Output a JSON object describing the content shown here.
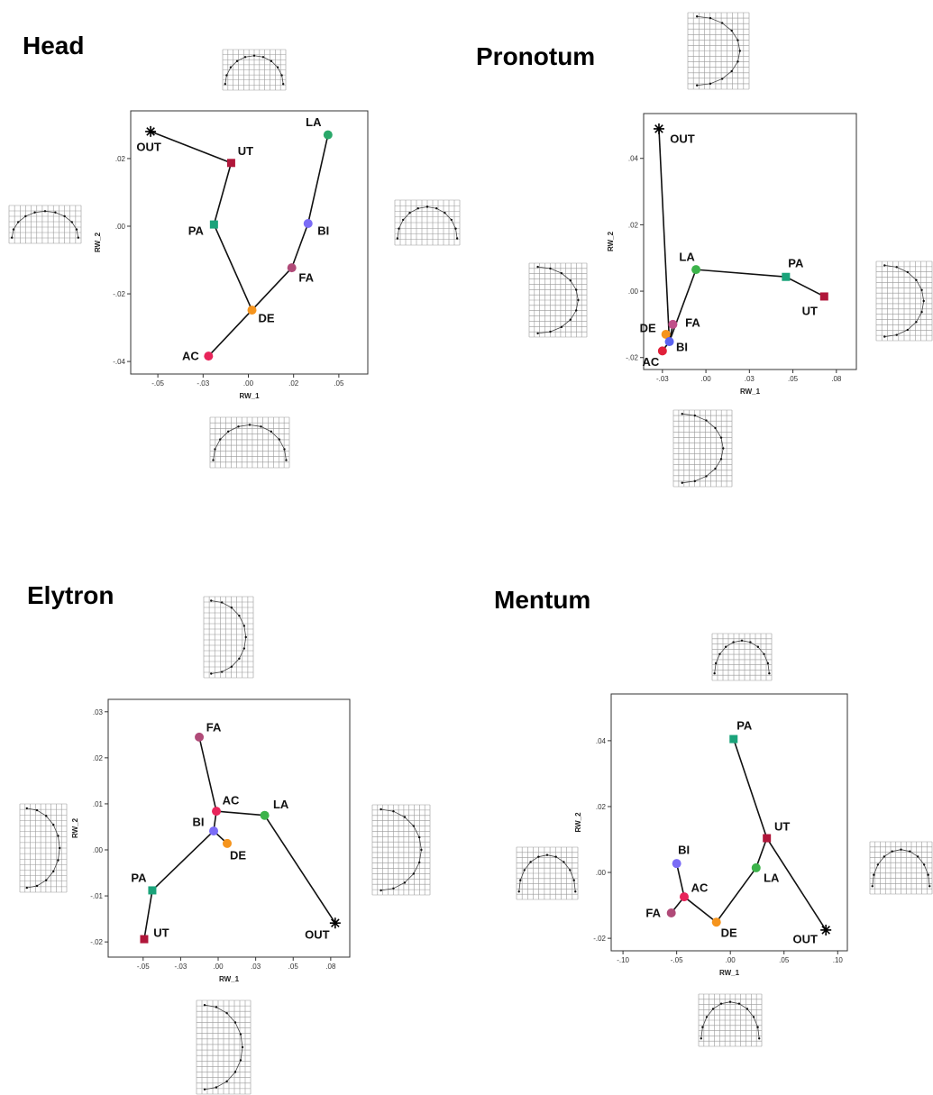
{
  "chart_data": [
    {
      "type": "scatter",
      "title": "Head",
      "xlabel": "RW_1",
      "ylabel": "RW_2",
      "xlim": [
        -0.065,
        0.066
      ],
      "ylim": [
        -0.0437,
        0.0341
      ],
      "xticks": [
        {
          "value": -0.05,
          "label": "-.05"
        },
        {
          "value": -0.025,
          "label": "-.03"
        },
        {
          "value": 0,
          "label": ".00"
        },
        {
          "value": 0.025,
          "label": ".02"
        },
        {
          "value": 0.05,
          "label": ".05"
        }
      ],
      "yticks": [
        {
          "value": 0.02,
          "label": ".02"
        },
        {
          "value": 0,
          "label": ".00"
        },
        {
          "value": -0.02,
          "label": "-.02"
        },
        {
          "value": -0.04,
          "label": "-.04"
        }
      ],
      "points": [
        {
          "label": "OUT",
          "x": -0.054,
          "y": 0.028,
          "color": "#000000",
          "marker": "star"
        },
        {
          "label": "UT",
          "x": -0.0095,
          "y": 0.0187,
          "color": "#b0163a",
          "marker": "square"
        },
        {
          "label": "PA",
          "x": -0.019,
          "y": 0.0005,
          "color": "#1aa37a",
          "marker": "square"
        },
        {
          "label": "LA",
          "x": 0.044,
          "y": 0.027,
          "color": "#2aa86a",
          "marker": "circle"
        },
        {
          "label": "BI",
          "x": 0.033,
          "y": 0.0008,
          "color": "#7b6cf6",
          "marker": "circle"
        },
        {
          "label": "FA",
          "x": 0.024,
          "y": -0.0123,
          "color": "#b04a78",
          "marker": "circle"
        },
        {
          "label": "DE",
          "x": 0.002,
          "y": -0.0248,
          "color": "#f5941d",
          "marker": "circle"
        },
        {
          "label": "AC",
          "x": -0.022,
          "y": -0.0384,
          "color": "#e8245a",
          "marker": "circle"
        }
      ],
      "edges": [
        [
          0,
          1
        ],
        [
          1,
          2
        ],
        [
          2,
          6
        ],
        [
          6,
          7
        ],
        [
          6,
          5
        ],
        [
          5,
          4
        ],
        [
          4,
          3
        ]
      ]
    },
    {
      "type": "scatter",
      "title": "Pronotum",
      "xlabel": "RW_1",
      "ylabel": "RW_2",
      "xlim": [
        -0.0358,
        0.0865
      ],
      "ylim": [
        -0.0236,
        0.0535
      ],
      "xticks": [
        {
          "value": -0.025,
          "label": "-.03"
        },
        {
          "value": 0,
          "label": ".00"
        },
        {
          "value": 0.025,
          "label": ".03"
        },
        {
          "value": 0.05,
          "label": ".05"
        },
        {
          "value": 0.075,
          "label": ".08"
        }
      ],
      "yticks": [
        {
          "value": 0.04,
          "label": ".04"
        },
        {
          "value": 0.02,
          "label": ".02"
        },
        {
          "value": 0,
          "label": ".00"
        },
        {
          "value": -0.02,
          "label": "-.02"
        }
      ],
      "points": [
        {
          "label": "OUT",
          "x": -0.027,
          "y": 0.0489,
          "color": "#000000",
          "marker": "star"
        },
        {
          "label": "LA",
          "x": -0.0057,
          "y": 0.0065,
          "color": "#3cb34a",
          "marker": "circle"
        },
        {
          "label": "PA",
          "x": 0.046,
          "y": 0.0043,
          "color": "#1aa37a",
          "marker": "square"
        },
        {
          "label": "UT",
          "x": 0.068,
          "y": -0.0016,
          "color": "#b0163a",
          "marker": "square"
        },
        {
          "label": "FA",
          "x": -0.019,
          "y": -0.01,
          "color": "#c0508a",
          "marker": "circle"
        },
        {
          "label": "DE",
          "x": -0.023,
          "y": -0.013,
          "color": "#f5941d",
          "marker": "circle"
        },
        {
          "label": "BI",
          "x": -0.021,
          "y": -0.0152,
          "color": "#5b63f0",
          "marker": "circle"
        },
        {
          "label": "AC",
          "x": -0.025,
          "y": -0.018,
          "color": "#e0203a",
          "marker": "circle"
        }
      ],
      "edges": [
        [
          0,
          6
        ],
        [
          6,
          1
        ],
        [
          1,
          2
        ],
        [
          2,
          3
        ],
        [
          6,
          4
        ],
        [
          6,
          5
        ],
        [
          6,
          7
        ]
      ]
    },
    {
      "type": "scatter",
      "title": "Elytron",
      "xlabel": "RW_1",
      "ylabel": "RW_2",
      "xlim": [
        -0.0733,
        0.0877
      ],
      "ylim": [
        -0.0233,
        0.0327
      ],
      "xticks": [
        {
          "value": -0.05,
          "label": "-.05"
        },
        {
          "value": -0.025,
          "label": "-.03"
        },
        {
          "value": 0,
          "label": ".00"
        },
        {
          "value": 0.025,
          "label": ".03"
        },
        {
          "value": 0.05,
          "label": ".05"
        },
        {
          "value": 0.075,
          "label": ".08"
        }
      ],
      "yticks": [
        {
          "value": 0.03,
          "label": ".03"
        },
        {
          "value": 0.02,
          "label": ".02"
        },
        {
          "value": 0.01,
          "label": ".01"
        },
        {
          "value": 0,
          "label": ".00"
        },
        {
          "value": -0.01,
          "label": "-.01"
        },
        {
          "value": -0.02,
          "label": "-.02"
        }
      ],
      "points": [
        {
          "label": "FA",
          "x": -0.0126,
          "y": 0.0245,
          "color": "#b04a78",
          "marker": "circle"
        },
        {
          "label": "AC",
          "x": -0.0012,
          "y": 0.0084,
          "color": "#e8245a",
          "marker": "circle"
        },
        {
          "label": "LA",
          "x": 0.031,
          "y": 0.0075,
          "color": "#3cb34a",
          "marker": "circle"
        },
        {
          "label": "BI",
          "x": -0.003,
          "y": 0.0041,
          "color": "#7b6cf6",
          "marker": "circle"
        },
        {
          "label": "DE",
          "x": 0.006,
          "y": 0.0014,
          "color": "#f5941d",
          "marker": "circle"
        },
        {
          "label": "PA",
          "x": -0.0439,
          "y": -0.0088,
          "color": "#1aa37a",
          "marker": "square"
        },
        {
          "label": "UT",
          "x": -0.0493,
          "y": -0.0194,
          "color": "#b0163a",
          "marker": "square"
        },
        {
          "label": "OUT",
          "x": 0.078,
          "y": -0.0159,
          "color": "#000000",
          "marker": "star"
        }
      ],
      "edges": [
        [
          0,
          1
        ],
        [
          1,
          2
        ],
        [
          2,
          7
        ],
        [
          1,
          3
        ],
        [
          3,
          4
        ],
        [
          3,
          5
        ],
        [
          5,
          6
        ]
      ]
    },
    {
      "type": "scatter",
      "title": "Mentum",
      "xlabel": "RW_1",
      "ylabel": "RW_2",
      "xlim": [
        -0.111,
        0.109
      ],
      "ylim": [
        -0.0238,
        0.0542
      ],
      "xticks": [
        {
          "value": -0.1,
          "label": "-.10"
        },
        {
          "value": -0.05,
          "label": "-.05"
        },
        {
          "value": 0,
          "label": ".00"
        },
        {
          "value": 0.05,
          "label": ".05"
        },
        {
          "value": 0.1,
          "label": ".10"
        }
      ],
      "yticks": [
        {
          "value": 0.04,
          "label": ".04"
        },
        {
          "value": 0.02,
          "label": ".02"
        },
        {
          "value": 0,
          "label": ".00"
        },
        {
          "value": -0.02,
          "label": "-.02"
        }
      ],
      "points": [
        {
          "label": "PA",
          "x": 0.003,
          "y": 0.0405,
          "color": "#1aa37a",
          "marker": "square"
        },
        {
          "label": "UT",
          "x": 0.034,
          "y": 0.0104,
          "color": "#b0163a",
          "marker": "square"
        },
        {
          "label": "LA",
          "x": 0.024,
          "y": 0.0014,
          "color": "#3cb34a",
          "marker": "circle"
        },
        {
          "label": "BI",
          "x": -0.05,
          "y": 0.0027,
          "color": "#7b6cf6",
          "marker": "circle"
        },
        {
          "label": "AC",
          "x": -0.043,
          "y": -0.0074,
          "color": "#e8245a",
          "marker": "circle"
        },
        {
          "label": "FA",
          "x": -0.055,
          "y": -0.0123,
          "color": "#b04a78",
          "marker": "circle"
        },
        {
          "label": "DE",
          "x": -0.013,
          "y": -0.0151,
          "color": "#f5941d",
          "marker": "circle"
        },
        {
          "label": "OUT",
          "x": 0.089,
          "y": -0.0175,
          "color": "#000000",
          "marker": "star"
        }
      ],
      "edges": [
        [
          0,
          1
        ],
        [
          1,
          7
        ],
        [
          1,
          2
        ],
        [
          2,
          6
        ],
        [
          6,
          4
        ],
        [
          4,
          3
        ],
        [
          4,
          5
        ]
      ]
    }
  ]
}
